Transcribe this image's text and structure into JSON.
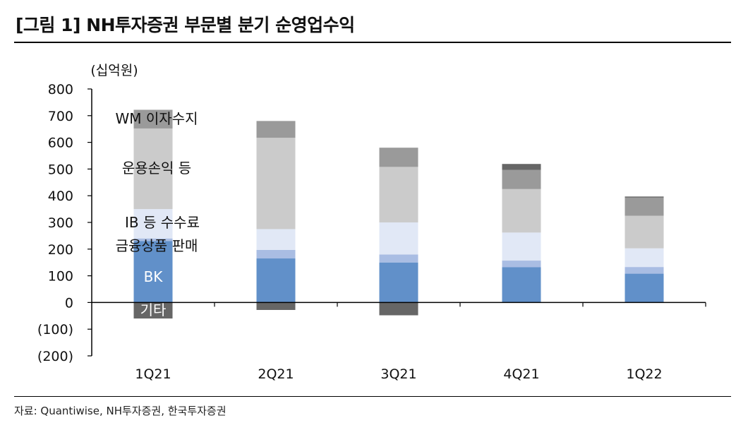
{
  "figure": {
    "title": "[그림 1] NH투자증권 부문별 분기 순영업수익",
    "source": "자료: Quantiwise, NH투자증권, 한국투자증권"
  },
  "chart_data": {
    "type": "bar",
    "stacked": true,
    "unit": "(십억원)",
    "categories": [
      "1Q21",
      "2Q21",
      "3Q21",
      "4Q21",
      "1Q22"
    ],
    "ylim": [
      -200,
      800
    ],
    "yticks": [
      800,
      700,
      600,
      500,
      400,
      300,
      200,
      100,
      0,
      -100,
      -200
    ],
    "ytick_labels": [
      "800",
      "700",
      "600",
      "500",
      "400",
      "300",
      "200",
      "100",
      "0",
      "(100)",
      "(200)"
    ],
    "legend_placement": "inline on first bar",
    "series": [
      {
        "name": "BK",
        "color": "#6190c9",
        "text_color": "#ffffff",
        "values": [
          230,
          165,
          150,
          132,
          108
        ]
      },
      {
        "name": "금융상품 판매",
        "color": "#a9bde3",
        "text_color": "#111111",
        "values": [
          10,
          32,
          30,
          25,
          25
        ]
      },
      {
        "name": "IB 등 수수료",
        "color": "#e1e8f6",
        "text_color": "#111111",
        "values": [
          110,
          78,
          120,
          105,
          70
        ]
      },
      {
        "name": "운용손익 등",
        "color": "#cbcbcb",
        "text_color": "#111111",
        "values": [
          302,
          342,
          208,
          163,
          122
        ]
      },
      {
        "name": "WM 이자수지",
        "color": "#9a9a9a",
        "text_color": "#111111",
        "values": [
          70,
          63,
          72,
          72,
          68
        ]
      },
      {
        "name": "기타",
        "color": "#666666",
        "text_color": "#ffffff",
        "values": [
          -60,
          -28,
          -48,
          22,
          4
        ]
      }
    ]
  }
}
